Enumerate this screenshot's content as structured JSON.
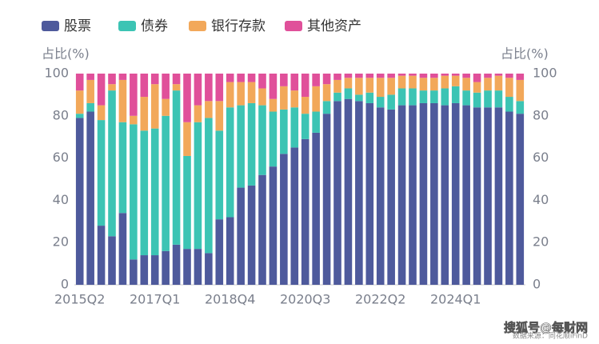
{
  "chart_data": {
    "type": "bar",
    "stacked": true,
    "y_label": "占比(%)",
    "y2_label": "占比(%)",
    "source": "数据来源：同花顺iFinD",
    "watermark": "搜狐号@每财网",
    "categories": [
      "2015Q2",
      null,
      null,
      null,
      null,
      null,
      null,
      "2017Q1",
      null,
      null,
      null,
      null,
      null,
      null,
      "2018Q4",
      null,
      null,
      null,
      null,
      null,
      null,
      "2020Q3",
      null,
      null,
      null,
      null,
      null,
      null,
      "2022Q2",
      null,
      null,
      null,
      null,
      null,
      null,
      "2024Q1",
      null,
      null,
      null,
      null,
      null,
      null
    ],
    "series": [
      {
        "name": "股票",
        "color": "#4e5a9c",
        "values": [
          79,
          82,
          28,
          23,
          34,
          12,
          14,
          14,
          16,
          19,
          17,
          17,
          15,
          31,
          32,
          46,
          47,
          52,
          56,
          62,
          65,
          69,
          72,
          81,
          87,
          88,
          87,
          86,
          84,
          83,
          85,
          85,
          86,
          86,
          85,
          86,
          85,
          84,
          84,
          84,
          82,
          81
        ]
      },
      {
        "name": "债券",
        "color": "#3cc4b4",
        "values": [
          2,
          4,
          50,
          69,
          43,
          64,
          59,
          60,
          64,
          73,
          44,
          60,
          64,
          42,
          52,
          39,
          39,
          33,
          26,
          21,
          19,
          12,
          10,
          6,
          4,
          5,
          3,
          5,
          5,
          7,
          8,
          8,
          6,
          6,
          8,
          8,
          7,
          7,
          8,
          8,
          7,
          6
        ]
      },
      {
        "name": "银行存款",
        "color": "#f2a85a",
        "values": [
          11,
          11,
          7,
          3,
          20,
          4,
          16,
          21,
          8,
          3,
          16,
          8,
          8,
          14,
          12,
          11,
          10,
          8,
          6,
          11,
          8,
          8,
          12,
          8,
          6,
          5,
          8,
          7,
          9,
          8,
          6,
          6,
          6,
          6,
          6,
          5,
          6,
          5,
          6,
          7,
          9,
          10
        ]
      },
      {
        "name": "其他资产",
        "color": "#e0509a",
        "values": [
          8,
          3,
          15,
          5,
          3,
          20,
          11,
          5,
          12,
          5,
          23,
          15,
          13,
          13,
          4,
          4,
          4,
          7,
          12,
          6,
          8,
          11,
          6,
          5,
          3,
          2,
          2,
          2,
          2,
          2,
          1,
          1,
          2,
          2,
          1,
          1,
          2,
          4,
          2,
          1,
          2,
          3
        ]
      }
    ],
    "ylim": [
      0,
      100
    ],
    "yticks": [
      0,
      20,
      40,
      60,
      80,
      100
    ],
    "y2lim": [
      0,
      100
    ],
    "y2ticks": [
      0,
      20,
      40,
      60,
      80,
      100
    ]
  }
}
